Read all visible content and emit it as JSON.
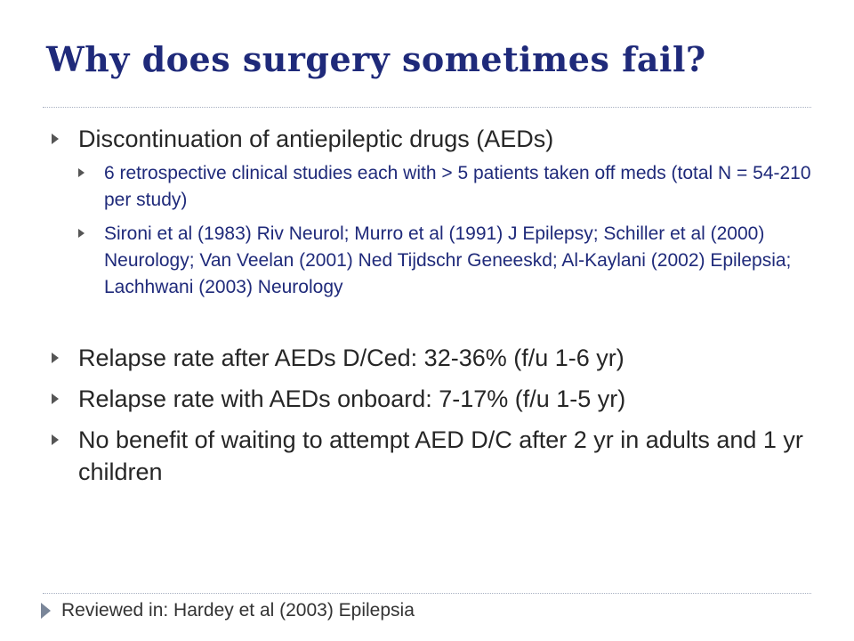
{
  "slide": {
    "title": "Why does surgery sometimes fail?",
    "bullets": [
      {
        "text": "Discontinuation of antiepileptic drugs (AEDs)",
        "sub": [
          "6 retrospective clinical studies each with > 5 patients taken off meds (total N = 54-210 per study)",
          "Sironi et al (1983) Riv Neurol;  Murro et al (1991) J Epilepsy;  Schiller et al (2000) Neurology;  Van Veelan (2001) Ned Tijdschr Geneeskd; Al-Kaylani (2002) Epilepsia;  Lachhwani (2003) Neurology"
        ]
      },
      {
        "text": "Relapse rate after AEDs D/Ced: 32-36% (f/u 1-6 yr)"
      },
      {
        "text": "Relapse rate with AEDs onboard: 7-17% (f/u 1-5 yr)"
      },
      {
        "text": "No benefit of waiting to attempt AED D/C after 2 yr in adults and 1 yr children"
      }
    ],
    "footer": "Reviewed in: Hardey et al (2003) Epilepsia"
  }
}
